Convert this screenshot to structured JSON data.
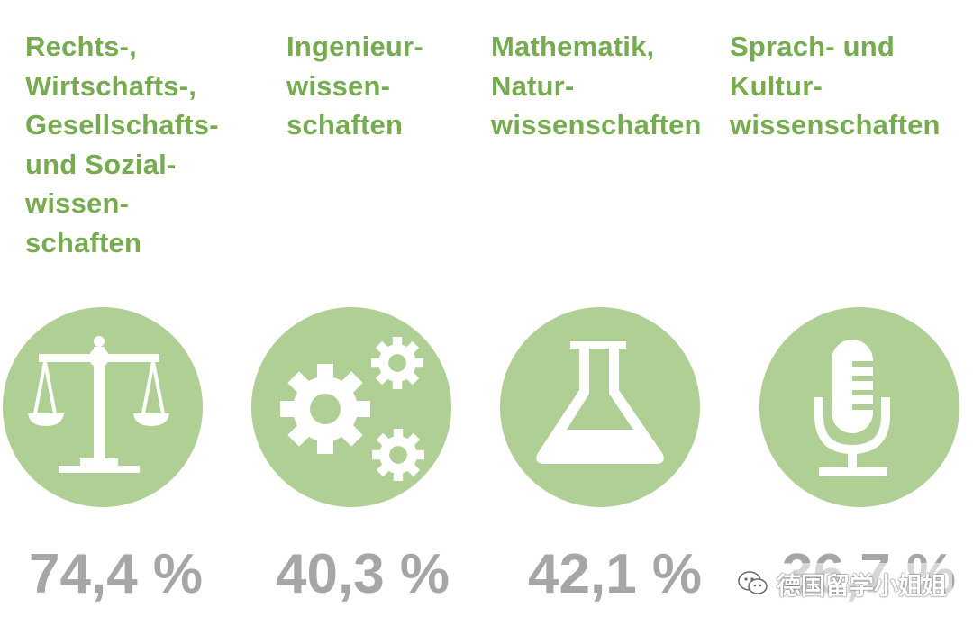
{
  "categories": [
    {
      "heading": "Rechts-,\nWirtschafts-,\nGesellschafts-\nund Sozial-\nwissen-\nschaften",
      "percentage": "74,4 %",
      "icon": "scales-icon"
    },
    {
      "heading": "Ingenieur-\nwissen-\nschaften",
      "percentage": "40,3 %",
      "icon": "gears-icon"
    },
    {
      "heading": "Mathematik,\nNatur-\nwissenschaften",
      "percentage": "42,1 %",
      "icon": "flask-icon"
    },
    {
      "heading": "Sprach- und\nKultur-\nwissenschaften",
      "percentage": "36,7 %",
      "icon": "microphone-icon"
    }
  ],
  "watermark": {
    "text": "德国留学小姐姐",
    "icon": "wechat-icon"
  },
  "colors": {
    "heading": "#76ab4f",
    "circle": "#b0cf94",
    "percentage": "#a6a6a6",
    "icon_fill": "#ffffff"
  }
}
